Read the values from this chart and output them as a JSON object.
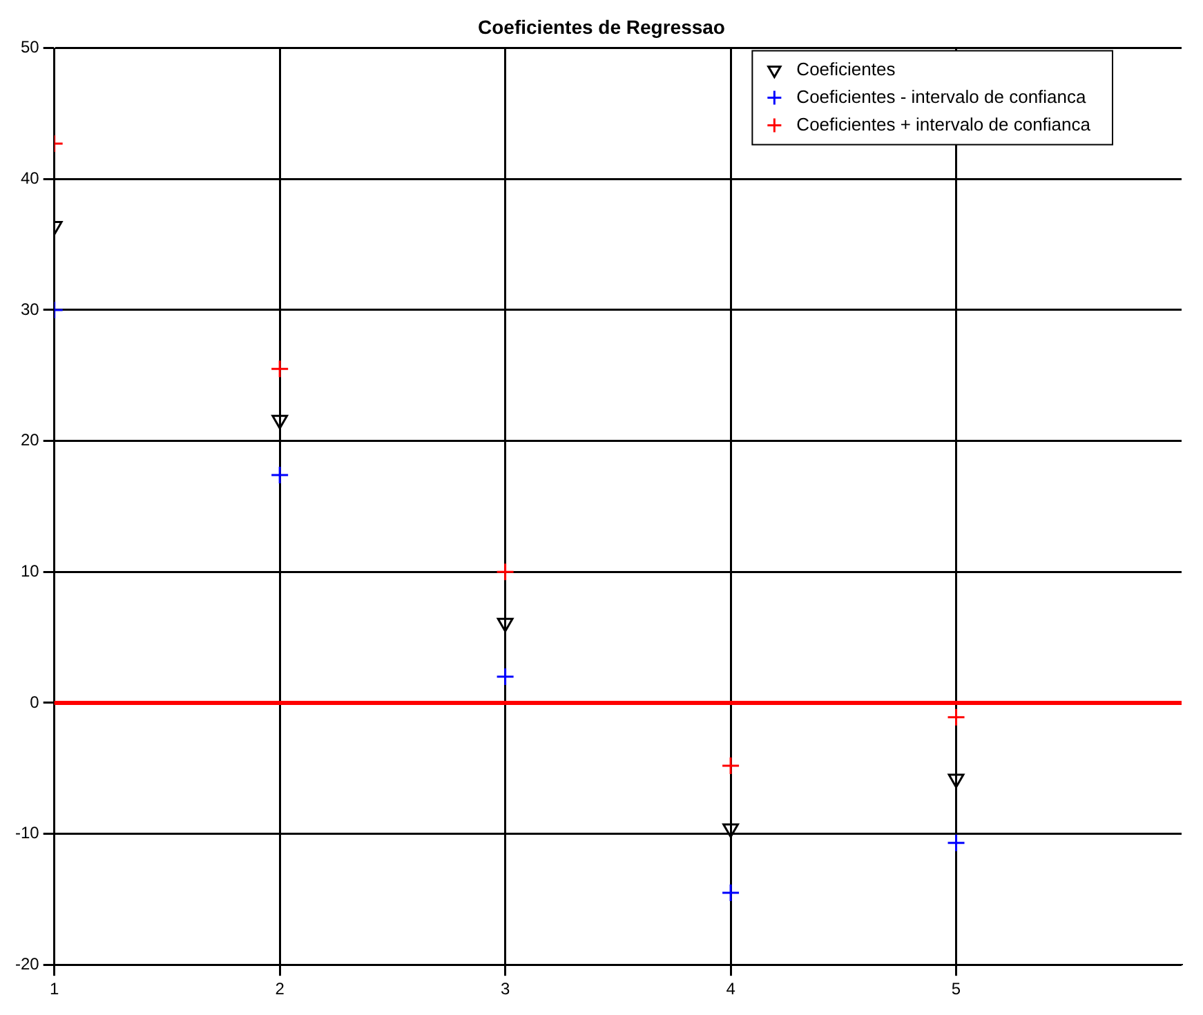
{
  "chart_data": {
    "type": "scatter",
    "title": "Coeficientes de Regressao",
    "x": [
      1,
      2,
      3,
      4,
      5
    ],
    "series": [
      {
        "name": "Coeficientes",
        "color": "#000000",
        "marker": "triangle",
        "values": [
          36.4,
          21.6,
          6.1,
          -9.6,
          -5.8
        ]
      },
      {
        "name": "Coeficientes - intervalo de confianca",
        "color": "#0000ff",
        "marker": "cross",
        "values": [
          30.0,
          17.4,
          2.0,
          -14.5,
          -10.7
        ]
      },
      {
        "name": "Coeficientes + intervalo de confianca",
        "color": "#ff0000",
        "marker": "cross",
        "values": [
          42.7,
          25.5,
          10.0,
          -4.8,
          -1.1
        ]
      }
    ],
    "xlim": [
      1,
      6
    ],
    "xticks": [
      1,
      2,
      3,
      4,
      5
    ],
    "ylim": [
      -20,
      50
    ],
    "yticks": [
      -20,
      -10,
      0,
      10,
      20,
      30,
      40,
      50
    ],
    "grid": true,
    "legend": "top right",
    "ref_lines": [
      {
        "axis": "y",
        "value": 0,
        "color": "#ff0000"
      }
    ]
  }
}
